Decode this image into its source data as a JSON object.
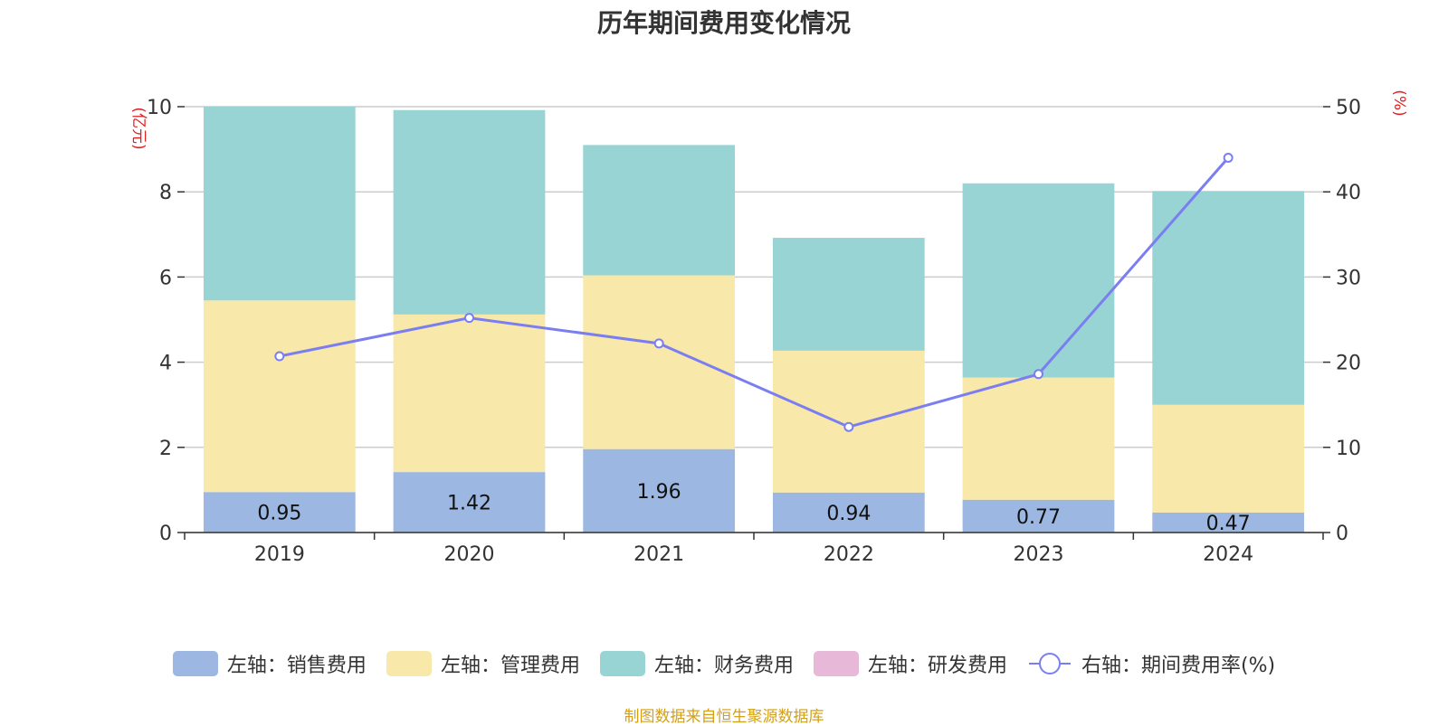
{
  "chart_data": {
    "type": "bar",
    "title": "历年期间费用变化情况",
    "categories": [
      "2019",
      "2020",
      "2021",
      "2022",
      "2023",
      "2024"
    ],
    "left_axis": {
      "unit_label": "(亿元)",
      "ylim": [
        0,
        10
      ],
      "ticks": [
        0,
        2,
        4,
        6,
        8,
        10
      ]
    },
    "right_axis": {
      "unit_label": "(%)",
      "ylim": [
        0,
        50
      ],
      "ticks": [
        0,
        10,
        20,
        30,
        40,
        50
      ]
    },
    "stacked": true,
    "series": [
      {
        "name": "左轴：销售费用",
        "axis": "left",
        "color": "#9bb7e2",
        "values": [
          0.95,
          1.42,
          1.96,
          0.94,
          0.77,
          0.47
        ],
        "labels": [
          "0.95",
          "1.42",
          "1.96",
          "0.94",
          "0.77",
          "0.47"
        ]
      },
      {
        "name": "左轴：管理费用",
        "axis": "left",
        "color": "#f8e8aa",
        "values": [
          4.5,
          3.7,
          4.08,
          3.33,
          2.87,
          2.53
        ]
      },
      {
        "name": "左轴：财务费用",
        "axis": "left",
        "color": "#98d4d4",
        "values": [
          4.55,
          4.8,
          3.06,
          2.65,
          4.56,
          5.02
        ]
      },
      {
        "name": "左轴：研发费用",
        "axis": "left",
        "color": "#e8b8d8",
        "values": [
          0,
          0,
          0,
          0,
          0,
          0
        ]
      },
      {
        "name": "右轴：期间费用率(%)",
        "axis": "right",
        "type": "line",
        "color": "#7b7ef0",
        "values": [
          20.7,
          25.2,
          22.2,
          12.4,
          18.6,
          44.0
        ]
      }
    ],
    "grid": true,
    "legend_position": "bottom"
  },
  "source_note": "制图数据来自恒生聚源数据库"
}
